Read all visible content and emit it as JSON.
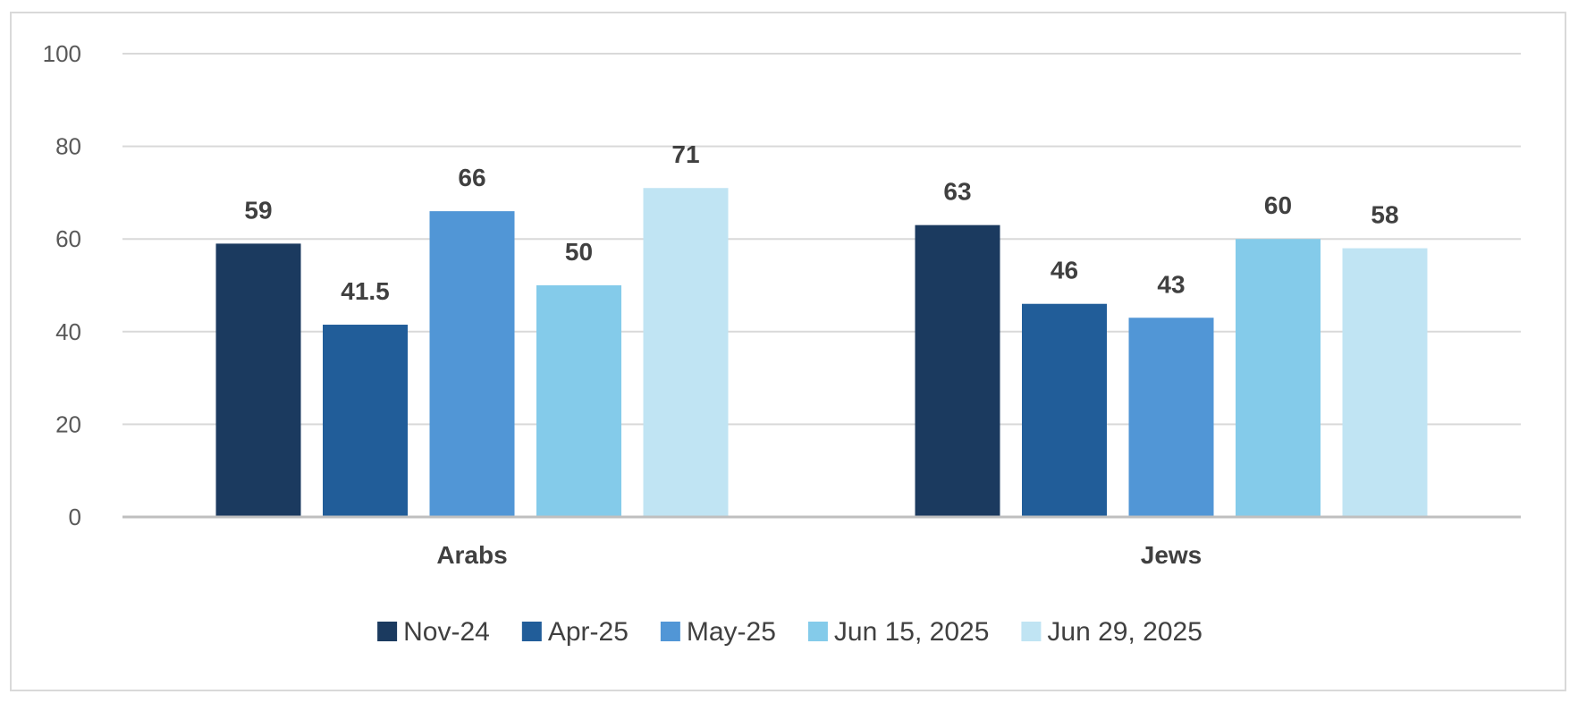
{
  "chart_data": {
    "type": "bar",
    "categories": [
      "Arabs",
      "Jews"
    ],
    "series": [
      {
        "name": "Nov-24",
        "color": "#1b3a5f",
        "values": [
          59,
          63
        ]
      },
      {
        "name": "Apr-25",
        "color": "#215d99",
        "values": [
          41.5,
          46
        ]
      },
      {
        "name": "May-25",
        "color": "#5196d6",
        "values": [
          66,
          43
        ]
      },
      {
        "name": "Jun 15, 2025",
        "color": "#84cbea",
        "values": [
          50,
          60
        ]
      },
      {
        "name": "Jun 29, 2025",
        "color": "#c0e4f3",
        "values": [
          71,
          58
        ]
      }
    ],
    "ylim": [
      0,
      100
    ],
    "yticks": [
      "0",
      "20",
      "40",
      "60",
      "80",
      "100"
    ],
    "grid": true,
    "legend": "bottom",
    "data_labels": true
  }
}
